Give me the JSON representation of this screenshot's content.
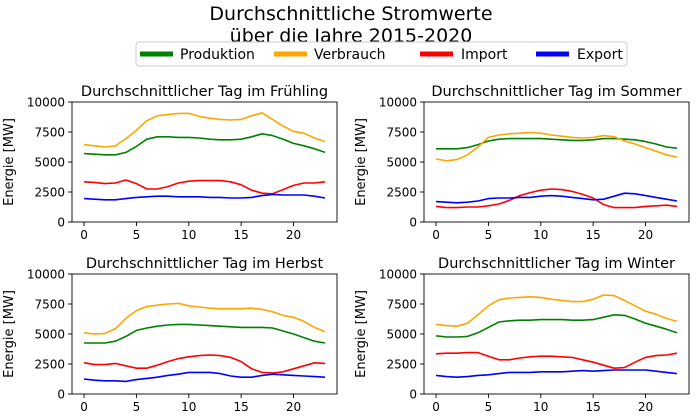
{
  "figure": {
    "title_line1": "Durchschnittliche Stromwerte",
    "title_line2": "über die Jahre 2015-2020"
  },
  "legend": [
    {
      "label": "Produktion",
      "color": "#008000"
    },
    {
      "label": "Verbrauch",
      "color": "#ffa500"
    },
    {
      "label": "Import",
      "color": "#ff0000"
    },
    {
      "label": "Export",
      "color": "#0000ff"
    }
  ],
  "chart_data": [
    {
      "type": "line",
      "title": "Durchschnittlicher Tag im Frühling",
      "ylabel": "Energie [MW]",
      "xlim": [
        -1.15,
        24.15
      ],
      "ylim": [
        0,
        10000
      ],
      "xticks": [
        0,
        5,
        10,
        15,
        20
      ],
      "yticks": [
        0,
        2500,
        5000,
        7500,
        10000
      ],
      "x": [
        0,
        1,
        2,
        3,
        4,
        5,
        6,
        7,
        8,
        9,
        10,
        11,
        12,
        13,
        14,
        15,
        16,
        17,
        18,
        19,
        20,
        21,
        22,
        23
      ],
      "series": [
        {
          "name": "Produktion",
          "color": "#008000",
          "values": [
            5700,
            5650,
            5600,
            5600,
            5800,
            6300,
            6900,
            7100,
            7100,
            7050,
            7050,
            7000,
            6900,
            6850,
            6850,
            6900,
            7100,
            7350,
            7200,
            6900,
            6550,
            6350,
            6100,
            5800
          ]
        },
        {
          "name": "Verbrauch",
          "color": "#ffa500",
          "values": [
            6450,
            6350,
            6250,
            6350,
            6950,
            7650,
            8450,
            8850,
            8950,
            9050,
            9050,
            8800,
            8650,
            8550,
            8500,
            8550,
            8850,
            9100,
            8550,
            8000,
            7550,
            7400,
            7000,
            6700
          ]
        },
        {
          "name": "Import",
          "color": "#ff0000",
          "values": [
            3350,
            3300,
            3200,
            3250,
            3500,
            3200,
            2750,
            2750,
            2950,
            3250,
            3400,
            3450,
            3450,
            3450,
            3350,
            3100,
            2650,
            2400,
            2350,
            2700,
            3050,
            3250,
            3250,
            3350
          ]
        },
        {
          "name": "Export",
          "color": "#0000ff",
          "values": [
            1950,
            1900,
            1850,
            1850,
            1950,
            2050,
            2100,
            2150,
            2150,
            2100,
            2100,
            2100,
            2050,
            2050,
            2000,
            2000,
            2050,
            2200,
            2300,
            2250,
            2250,
            2250,
            2150,
            2000
          ]
        }
      ]
    },
    {
      "type": "line",
      "title": "Durchschnittlicher Tag im Sommer",
      "ylabel": "Energie [MW]",
      "xlim": [
        -1.15,
        24.15
      ],
      "ylim": [
        0,
        10000
      ],
      "xticks": [
        0,
        5,
        10,
        15,
        20
      ],
      "yticks": [
        0,
        2500,
        5000,
        7500,
        10000
      ],
      "x": [
        0,
        1,
        2,
        3,
        4,
        5,
        6,
        7,
        8,
        9,
        10,
        11,
        12,
        13,
        14,
        15,
        16,
        17,
        18,
        19,
        20,
        21,
        22,
        23
      ],
      "series": [
        {
          "name": "Produktion",
          "color": "#008000",
          "values": [
            6100,
            6100,
            6100,
            6200,
            6450,
            6750,
            6900,
            6950,
            6950,
            6950,
            6950,
            6900,
            6850,
            6800,
            6800,
            6850,
            6950,
            6950,
            6900,
            6850,
            6700,
            6500,
            6250,
            6150
          ]
        },
        {
          "name": "Verbrauch",
          "color": "#ffa500",
          "values": [
            5250,
            5100,
            5200,
            5600,
            6250,
            7050,
            7250,
            7350,
            7400,
            7450,
            7400,
            7250,
            7150,
            7050,
            7000,
            7050,
            7200,
            7100,
            6750,
            6500,
            6200,
            5900,
            5600,
            5400
          ]
        },
        {
          "name": "Import",
          "color": "#ff0000",
          "values": [
            1300,
            1200,
            1200,
            1250,
            1250,
            1350,
            1500,
            1800,
            2200,
            2450,
            2650,
            2750,
            2700,
            2550,
            2300,
            2000,
            1450,
            1200,
            1200,
            1200,
            1300,
            1350,
            1400,
            1300
          ]
        },
        {
          "name": "Export",
          "color": "#0000ff",
          "values": [
            1700,
            1650,
            1600,
            1650,
            1750,
            1950,
            2000,
            2000,
            2050,
            2050,
            2150,
            2200,
            2150,
            2050,
            1950,
            1850,
            1900,
            2150,
            2400,
            2350,
            2200,
            2050,
            1900,
            1750
          ]
        }
      ]
    },
    {
      "type": "line",
      "title": "Durchschnittlicher Tag im Herbst",
      "ylabel": "Energie [MW]",
      "xlim": [
        -1.15,
        24.15
      ],
      "ylim": [
        0,
        10000
      ],
      "xticks": [
        0,
        5,
        10,
        15,
        20
      ],
      "yticks": [
        0,
        2500,
        5000,
        7500,
        10000
      ],
      "x": [
        0,
        1,
        2,
        3,
        4,
        5,
        6,
        7,
        8,
        9,
        10,
        11,
        12,
        13,
        14,
        15,
        16,
        17,
        18,
        19,
        20,
        21,
        22,
        23
      ],
      "series": [
        {
          "name": "Produktion",
          "color": "#008000",
          "values": [
            4250,
            4250,
            4250,
            4400,
            4800,
            5300,
            5500,
            5650,
            5750,
            5800,
            5800,
            5750,
            5700,
            5650,
            5600,
            5550,
            5550,
            5550,
            5500,
            5250,
            5000,
            4700,
            4400,
            4250
          ]
        },
        {
          "name": "Verbrauch",
          "color": "#ffa500",
          "values": [
            5100,
            5000,
            5050,
            5450,
            6300,
            6950,
            7300,
            7400,
            7500,
            7550,
            7350,
            7250,
            7150,
            7100,
            7100,
            7100,
            7150,
            7050,
            6850,
            6550,
            6400,
            6050,
            5550,
            5200
          ]
        },
        {
          "name": "Import",
          "color": "#ff0000",
          "values": [
            2600,
            2450,
            2450,
            2550,
            2350,
            2150,
            2150,
            2400,
            2700,
            2950,
            3100,
            3200,
            3250,
            3200,
            3050,
            2700,
            2100,
            1800,
            1750,
            1850,
            2100,
            2350,
            2600,
            2550
          ]
        },
        {
          "name": "Export",
          "color": "#0000ff",
          "values": [
            1250,
            1150,
            1100,
            1100,
            1050,
            1200,
            1300,
            1400,
            1550,
            1650,
            1800,
            1800,
            1800,
            1700,
            1500,
            1400,
            1400,
            1550,
            1650,
            1600,
            1550,
            1500,
            1450,
            1400
          ]
        }
      ]
    },
    {
      "type": "line",
      "title": "Durchschnittlicher Tag im Winter",
      "ylabel": "Energie [MW]",
      "xlim": [
        -1.15,
        24.15
      ],
      "ylim": [
        0,
        10000
      ],
      "xticks": [
        0,
        5,
        10,
        15,
        20
      ],
      "yticks": [
        0,
        2500,
        5000,
        7500,
        10000
      ],
      "x": [
        0,
        1,
        2,
        3,
        4,
        5,
        6,
        7,
        8,
        9,
        10,
        11,
        12,
        13,
        14,
        15,
        16,
        17,
        18,
        19,
        20,
        21,
        22,
        23
      ],
      "series": [
        {
          "name": "Produktion",
          "color": "#008000",
          "values": [
            4850,
            4750,
            4750,
            4800,
            5100,
            5550,
            6000,
            6100,
            6150,
            6150,
            6200,
            6200,
            6200,
            6150,
            6150,
            6200,
            6400,
            6600,
            6550,
            6250,
            5900,
            5650,
            5400,
            5100
          ]
        },
        {
          "name": "Verbrauch",
          "color": "#ffa500",
          "values": [
            5800,
            5700,
            5650,
            5900,
            6600,
            7350,
            7850,
            8000,
            8050,
            8100,
            8050,
            7900,
            7800,
            7700,
            7700,
            7900,
            8250,
            8200,
            7800,
            7350,
            6900,
            6650,
            6300,
            6050
          ]
        },
        {
          "name": "Import",
          "color": "#ff0000",
          "values": [
            3350,
            3400,
            3400,
            3450,
            3450,
            3150,
            2850,
            2850,
            3000,
            3100,
            3150,
            3150,
            3100,
            3050,
            2850,
            2650,
            2400,
            2150,
            2200,
            2650,
            3050,
            3200,
            3250,
            3400
          ]
        },
        {
          "name": "Export",
          "color": "#0000ff",
          "values": [
            1550,
            1450,
            1400,
            1450,
            1550,
            1600,
            1700,
            1800,
            1800,
            1800,
            1850,
            1850,
            1850,
            1900,
            1950,
            1900,
            1950,
            2000,
            2000,
            2000,
            2000,
            1900,
            1800,
            1700
          ]
        }
      ]
    }
  ]
}
